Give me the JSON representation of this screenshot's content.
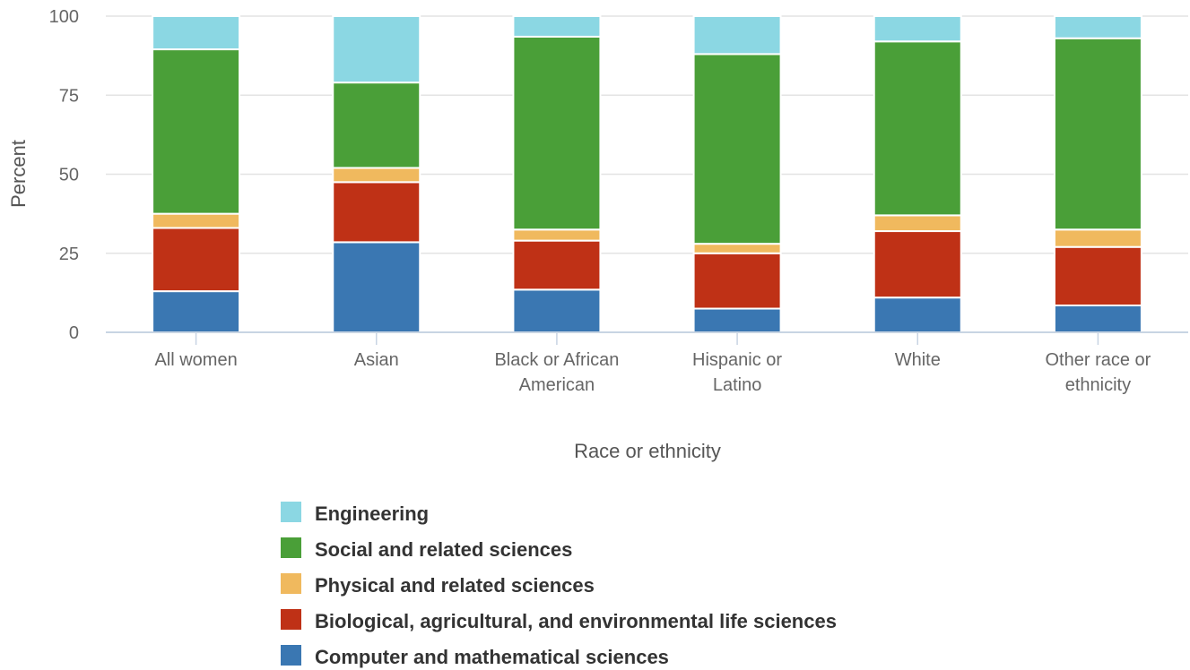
{
  "chart_data": {
    "type": "bar",
    "stacked": true,
    "title": "",
    "xlabel": "Race or ethnicity",
    "ylabel": "Percent",
    "ylim": [
      0,
      100
    ],
    "yticks": [
      0,
      25,
      50,
      75,
      100
    ],
    "grid": true,
    "legend_position": "bottom",
    "categories": [
      [
        "All women"
      ],
      [
        "Asian"
      ],
      [
        "Black or African",
        "American"
      ],
      [
        "Hispanic or",
        "Latino"
      ],
      [
        "White"
      ],
      [
        "Other race or",
        "ethnicity"
      ]
    ],
    "series": [
      {
        "name": "Computer and mathematical sciences",
        "color": "#3a77b2",
        "values": [
          13.0,
          28.5,
          13.5,
          7.5,
          11.0,
          8.5
        ]
      },
      {
        "name": "Biological, agricultural, and environmental life sciences",
        "color": "#bf3116",
        "values": [
          20.0,
          19.0,
          15.5,
          17.5,
          21.0,
          18.5
        ]
      },
      {
        "name": "Physical and related sciences",
        "color": "#f0b95e",
        "values": [
          4.5,
          4.5,
          3.5,
          3.0,
          5.0,
          5.5
        ]
      },
      {
        "name": "Social and related sciences",
        "color": "#4a9f38",
        "values": [
          52.0,
          27.0,
          61.0,
          60.0,
          55.0,
          60.5
        ]
      },
      {
        "name": "Engineering",
        "color": "#8bd7e3",
        "values": [
          10.5,
          21.0,
          6.5,
          12.0,
          8.0,
          7.0
        ]
      }
    ],
    "legend_order": [
      "Engineering",
      "Social and related sciences",
      "Physical and related sciences",
      "Biological, agricultural, and environmental life sciences",
      "Computer and mathematical sciences"
    ]
  }
}
